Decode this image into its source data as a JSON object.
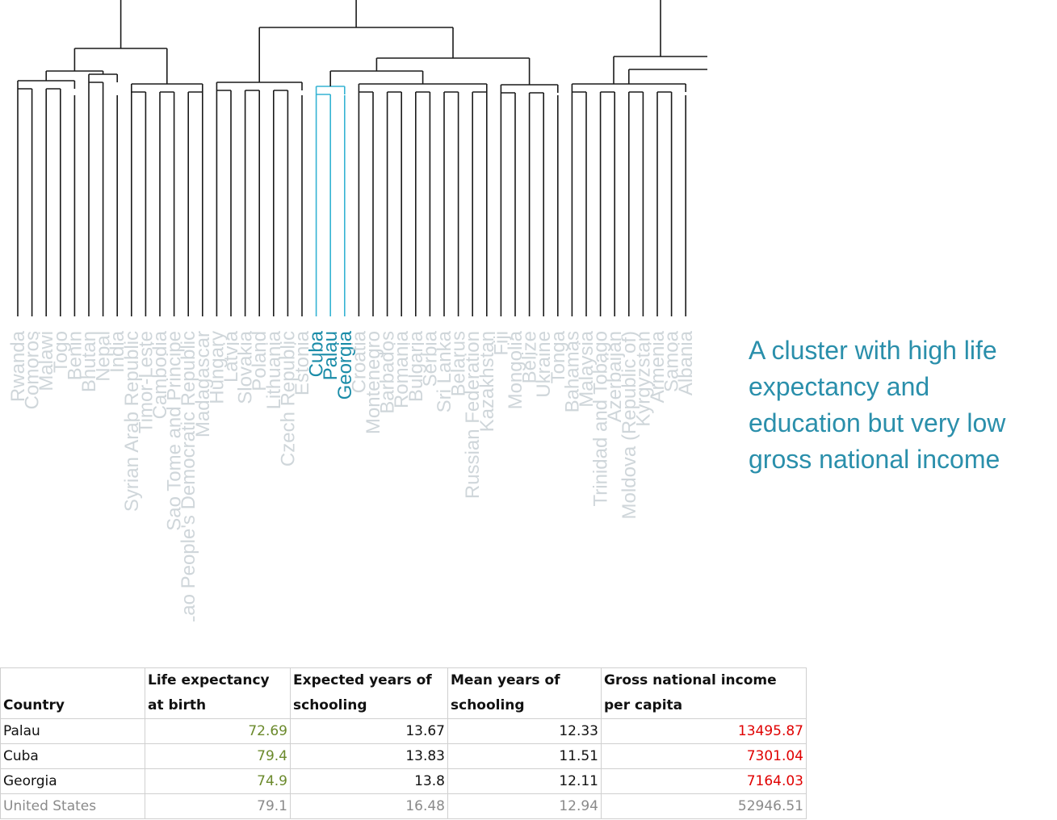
{
  "dendrogram": {
    "leaves": [
      "Rwanda",
      "Comoros",
      "Malawi",
      "Togo",
      "Benin",
      "Bhutan",
      "Nepal",
      "India",
      "Syrian Arab Republic",
      "Timor-Leste",
      "Cambodia",
      "Sao Tome and Principe",
      "Lao People's Democratic Republic",
      "Madagascar",
      "Hungary",
      "Latvia",
      "Slovakia",
      "Poland",
      "Lithuania",
      "Czech Republic",
      "Estonia",
      "Cuba",
      "Palau",
      "Georgia",
      "Croatia",
      "Montenegro",
      "Barbados",
      "Romania",
      "Bulgaria",
      "Serbia",
      "Sri Lanka",
      "Belarus",
      "Russian Federation",
      "Kazakhstan",
      "Fiji",
      "Mongolia",
      "Belize",
      "Ukraine",
      "Tonga",
      "Bahamas",
      "Malaysia",
      "Trinidad and Tobago",
      "Azerbaijan",
      "Moldova (Republic of)",
      "Kyrgyzstan",
      "Armenia",
      "Samoa",
      "Albania"
    ],
    "highlighted": [
      "Cuba",
      "Palau",
      "Georgia"
    ],
    "highlight_color": "#35b3d3",
    "line_color": "#1a1a1a",
    "label_color": "#cfd6da"
  },
  "annotation": {
    "text": "A cluster with high life expectancy and education but very low gross national income",
    "color": "#2a8fab"
  },
  "table": {
    "headers": [
      "Country",
      "Life expectancy at birth",
      "Expected years of schooling",
      "Mean years of schooling",
      "Gross national income per capita"
    ],
    "rows": [
      {
        "country": "Palau",
        "life": "72.69",
        "expected": "13.67",
        "mean": "12.33",
        "income": "13495.87"
      },
      {
        "country": "Cuba",
        "life": "79.4",
        "expected": "13.83",
        "mean": "11.51",
        "income": "7301.04"
      },
      {
        "country": "Georgia",
        "life": "74.9",
        "expected": "13.8",
        "mean": "12.11",
        "income": "7164.03"
      },
      {
        "country": "United States",
        "life": "79.1",
        "expected": "16.48",
        "mean": "12.94",
        "income": "52946.51"
      }
    ]
  }
}
